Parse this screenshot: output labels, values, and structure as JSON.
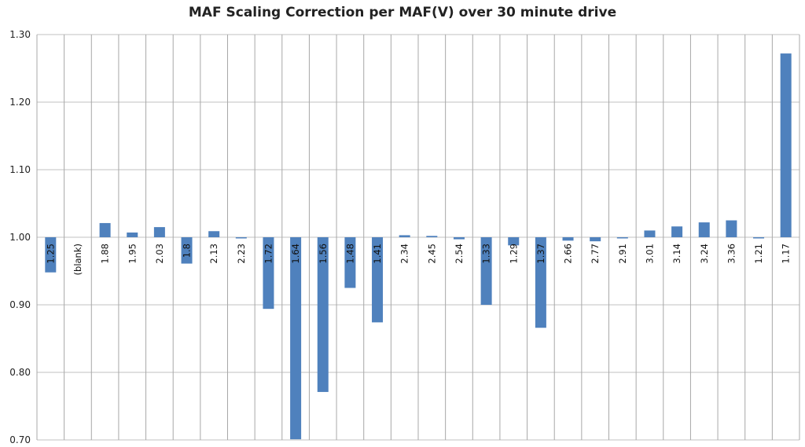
{
  "chart_data": {
    "type": "bar",
    "title": "MAF Scaling Correction per MAF(V) over 30 minute drive",
    "xlabel": "",
    "ylabel": "",
    "ylim": [
      0.7,
      1.3
    ],
    "baseline": 1.0,
    "yticks": [
      "0.70",
      "0.80",
      "0.90",
      "1.00",
      "1.10",
      "1.20",
      "1.30"
    ],
    "grid": true,
    "bar_color": "#4F81BD",
    "categories": [
      "1.25",
      "(blank)",
      "1.88",
      "1.95",
      "2.03",
      "1.8",
      "2.13",
      "2.23",
      "1.72",
      "1.64",
      "1.56",
      "1.48",
      "1.41",
      "2.34",
      "2.45",
      "2.54",
      "1.33",
      "1.29",
      "1.37",
      "2.66",
      "2.77",
      "2.91",
      "3.01",
      "3.14",
      "3.24",
      "3.36",
      "1.21",
      "1.17"
    ],
    "values": [
      0.948,
      null,
      1.021,
      1.007,
      1.015,
      0.961,
      1.009,
      0.999,
      0.894,
      0.701,
      0.771,
      0.925,
      0.874,
      1.003,
      1.002,
      0.997,
      0.9,
      0.988,
      0.866,
      0.995,
      0.994,
      0.999,
      1.01,
      1.016,
      1.022,
      1.025,
      0.999,
      1.272
    ]
  }
}
